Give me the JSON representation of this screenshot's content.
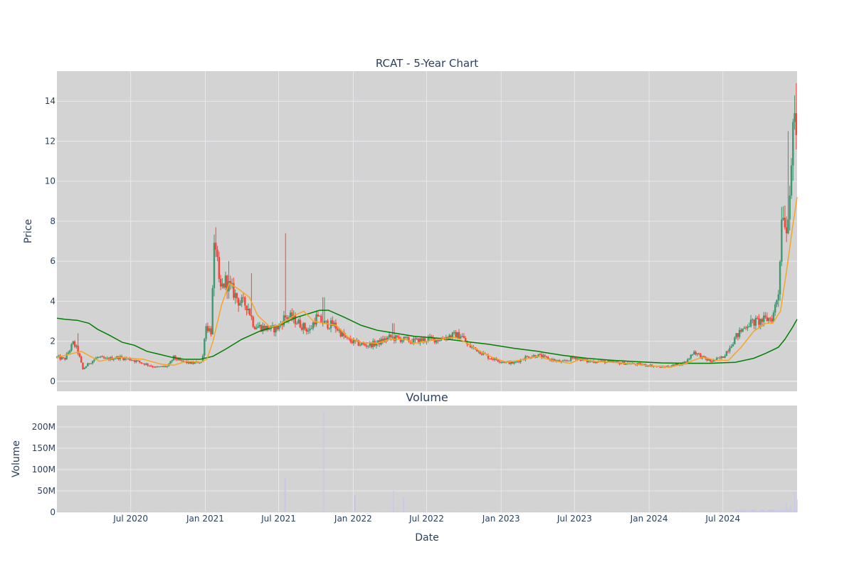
{
  "chart_data": [
    {
      "type": "candlestick",
      "title": "RCAT - 5-Year Chart",
      "ylabel": "Price",
      "xlabel": "",
      "x_range": [
        "2020-01-01",
        "2024-12-31"
      ],
      "ylim": [
        -0.5,
        15.5
      ],
      "y_ticks": [
        0,
        2,
        4,
        6,
        8,
        10,
        12,
        14
      ],
      "grid": true,
      "legend": "none",
      "colors": {
        "plot_bg": "#d3d3d3",
        "grid": "#e8e8ee",
        "up": "#3d9970",
        "down": "#ff4136",
        "ma_short": "#f5a623",
        "ma_long": "#008000",
        "text": "#2a3f5f"
      },
      "price_path": [
        [
          "2020-01-01",
          1.2
        ],
        [
          "2020-01-20",
          1.1
        ],
        [
          "2020-02-10",
          1.9
        ],
        [
          "2020-02-20",
          1.6
        ],
        [
          "2020-03-05",
          0.6
        ],
        [
          "2020-03-20",
          0.9
        ],
        [
          "2020-04-10",
          1.2
        ],
        [
          "2020-05-01",
          1.1
        ],
        [
          "2020-06-01",
          1.2
        ],
        [
          "2020-07-01",
          1.1
        ],
        [
          "2020-08-01",
          0.9
        ],
        [
          "2020-09-01",
          0.7
        ],
        [
          "2020-10-01",
          0.75
        ],
        [
          "2020-10-15",
          1.2
        ],
        [
          "2020-11-01",
          1.0
        ],
        [
          "2020-12-01",
          0.9
        ],
        [
          "2020-12-25",
          1.0
        ],
        [
          "2021-01-01",
          2.8
        ],
        [
          "2021-01-15",
          2.5
        ],
        [
          "2021-01-25",
          7.4
        ],
        [
          "2021-02-05",
          4.5
        ],
        [
          "2021-02-20",
          5.0
        ],
        [
          "2021-03-10",
          4.5
        ],
        [
          "2021-03-25",
          4.0
        ],
        [
          "2021-04-15",
          3.8
        ],
        [
          "2021-05-01",
          2.8
        ],
        [
          "2021-05-20",
          2.7
        ],
        [
          "2021-06-15",
          2.6
        ],
        [
          "2021-07-01",
          2.7
        ],
        [
          "2021-07-15",
          3.2
        ],
        [
          "2021-08-01",
          3.2
        ],
        [
          "2021-08-20",
          2.9
        ],
        [
          "2021-09-15",
          2.5
        ],
        [
          "2021-10-01",
          3.2
        ],
        [
          "2021-10-20",
          2.9
        ],
        [
          "2021-11-15",
          2.8
        ],
        [
          "2021-12-15",
          2.1
        ],
        [
          "2022-01-10",
          1.9
        ],
        [
          "2022-02-01",
          1.8
        ],
        [
          "2022-03-01",
          1.9
        ],
        [
          "2022-04-01",
          2.2
        ],
        [
          "2022-05-01",
          2.1
        ],
        [
          "2022-06-01",
          2.0
        ],
        [
          "2022-07-01",
          2.1
        ],
        [
          "2022-08-01",
          2.1
        ],
        [
          "2022-09-01",
          2.3
        ],
        [
          "2022-09-25",
          2.3
        ],
        [
          "2022-10-10",
          1.8
        ],
        [
          "2022-11-01",
          1.6
        ],
        [
          "2022-12-01",
          1.2
        ],
        [
          "2023-01-01",
          1.0
        ],
        [
          "2023-02-01",
          0.9
        ],
        [
          "2023-03-01",
          1.2
        ],
        [
          "2023-04-01",
          1.3
        ],
        [
          "2023-05-01",
          1.1
        ],
        [
          "2023-06-01",
          0.95
        ],
        [
          "2023-07-01",
          1.2
        ],
        [
          "2023-08-01",
          1.0
        ],
        [
          "2023-09-01",
          1.0
        ],
        [
          "2023-10-01",
          0.95
        ],
        [
          "2023-11-01",
          0.9
        ],
        [
          "2023-12-01",
          0.85
        ],
        [
          "2024-01-01",
          0.8
        ],
        [
          "2024-02-01",
          0.7
        ],
        [
          "2024-03-01",
          0.8
        ],
        [
          "2024-04-01",
          0.95
        ],
        [
          "2024-04-20",
          1.5
        ],
        [
          "2024-05-10",
          1.2
        ],
        [
          "2024-06-01",
          1.0
        ],
        [
          "2024-07-01",
          1.2
        ],
        [
          "2024-08-01",
          2.2
        ],
        [
          "2024-09-01",
          2.9
        ],
        [
          "2024-10-01",
          3.0
        ],
        [
          "2024-11-01",
          3.2
        ],
        [
          "2024-11-15",
          4.5
        ],
        [
          "2024-11-25",
          9.0
        ],
        [
          "2024-12-05",
          7.5
        ],
        [
          "2024-12-15",
          10.5
        ],
        [
          "2024-12-25",
          13.0
        ],
        [
          "2024-12-31",
          12.0
        ]
      ],
      "spikes": [
        [
          "2020-02-22",
          2.4
        ],
        [
          "2021-01-27",
          7.7
        ],
        [
          "2021-03-01",
          6.0
        ],
        [
          "2021-04-25",
          5.4
        ],
        [
          "2021-07-17",
          7.4
        ],
        [
          "2021-10-20",
          4.2
        ],
        [
          "2022-04-10",
          2.9
        ],
        [
          "2024-12-10",
          12.5
        ],
        [
          "2024-12-30",
          14.9
        ]
      ],
      "ma_short": [
        [
          "2020-01-01",
          1.2
        ],
        [
          "2020-03-01",
          1.5
        ],
        [
          "2020-04-15",
          1.0
        ],
        [
          "2020-06-01",
          1.2
        ],
        [
          "2020-08-01",
          1.1
        ],
        [
          "2020-09-15",
          0.85
        ],
        [
          "2020-10-15",
          0.8
        ],
        [
          "2020-11-15",
          1.0
        ],
        [
          "2020-12-20",
          0.95
        ],
        [
          "2021-01-05",
          1.1
        ],
        [
          "2021-01-20",
          2.0
        ],
        [
          "2021-02-10",
          3.8
        ],
        [
          "2021-03-01",
          4.9
        ],
        [
          "2021-03-25",
          4.6
        ],
        [
          "2021-04-20",
          4.2
        ],
        [
          "2021-05-10",
          3.3
        ],
        [
          "2021-06-10",
          2.7
        ],
        [
          "2021-07-01",
          2.8
        ],
        [
          "2021-08-10",
          3.3
        ],
        [
          "2021-09-01",
          3.5
        ],
        [
          "2021-09-25",
          3.0
        ],
        [
          "2021-10-20",
          2.9
        ],
        [
          "2021-11-20",
          2.8
        ],
        [
          "2021-12-20",
          2.2
        ],
        [
          "2022-01-20",
          1.95
        ],
        [
          "2022-03-01",
          1.9
        ],
        [
          "2022-04-01",
          2.1
        ],
        [
          "2022-05-10",
          2.1
        ],
        [
          "2022-06-01",
          1.9
        ],
        [
          "2022-07-01",
          2.0
        ],
        [
          "2022-08-01",
          2.1
        ],
        [
          "2022-09-10",
          2.2
        ],
        [
          "2022-10-10",
          1.9
        ],
        [
          "2022-11-10",
          1.5
        ],
        [
          "2022-12-10",
          1.2
        ],
        [
          "2023-01-15",
          0.95
        ],
        [
          "2023-02-15",
          1.05
        ],
        [
          "2023-04-01",
          1.25
        ],
        [
          "2023-05-15",
          1.0
        ],
        [
          "2023-06-20",
          0.9
        ],
        [
          "2023-07-15",
          1.1
        ],
        [
          "2023-08-15",
          1.0
        ],
        [
          "2023-10-01",
          0.95
        ],
        [
          "2023-12-01",
          0.85
        ],
        [
          "2024-01-15",
          0.75
        ],
        [
          "2024-02-20",
          0.7
        ],
        [
          "2024-04-01",
          0.9
        ],
        [
          "2024-05-10",
          1.2
        ],
        [
          "2024-06-15",
          1.05
        ],
        [
          "2024-07-15",
          1.05
        ],
        [
          "2024-08-15",
          1.7
        ],
        [
          "2024-09-15",
          2.5
        ],
        [
          "2024-10-15",
          2.9
        ],
        [
          "2024-11-01",
          2.9
        ],
        [
          "2024-11-20",
          3.5
        ],
        [
          "2024-12-05",
          5.5
        ],
        [
          "2024-12-20",
          7.7
        ],
        [
          "2024-12-31",
          9.2
        ]
      ],
      "ma_long": [
        [
          "2020-01-01",
          3.15
        ],
        [
          "2020-01-20",
          3.1
        ],
        [
          "2020-02-20",
          3.05
        ],
        [
          "2020-03-20",
          2.9
        ],
        [
          "2020-04-10",
          2.6
        ],
        [
          "2020-05-10",
          2.3
        ],
        [
          "2020-06-10",
          1.95
        ],
        [
          "2020-07-10",
          1.8
        ],
        [
          "2020-08-10",
          1.5
        ],
        [
          "2020-09-10",
          1.35
        ],
        [
          "2020-10-10",
          1.2
        ],
        [
          "2020-11-10",
          1.1
        ],
        [
          "2020-12-20",
          1.1
        ],
        [
          "2021-01-20",
          1.25
        ],
        [
          "2021-02-20",
          1.6
        ],
        [
          "2021-04-01",
          2.1
        ],
        [
          "2021-05-15",
          2.5
        ],
        [
          "2021-07-01",
          2.8
        ],
        [
          "2021-08-15",
          3.2
        ],
        [
          "2021-10-10",
          3.55
        ],
        [
          "2021-11-01",
          3.55
        ],
        [
          "2021-12-10",
          3.2
        ],
        [
          "2022-01-20",
          2.8
        ],
        [
          "2022-03-01",
          2.55
        ],
        [
          "2022-04-15",
          2.4
        ],
        [
          "2022-06-01",
          2.25
        ],
        [
          "2022-08-01",
          2.15
        ],
        [
          "2022-10-01",
          2.0
        ],
        [
          "2022-12-01",
          1.85
        ],
        [
          "2023-02-01",
          1.65
        ],
        [
          "2023-04-01",
          1.5
        ],
        [
          "2023-06-01",
          1.3
        ],
        [
          "2023-08-01",
          1.15
        ],
        [
          "2023-10-01",
          1.05
        ],
        [
          "2023-12-01",
          0.98
        ],
        [
          "2024-02-01",
          0.92
        ],
        [
          "2024-04-01",
          0.9
        ],
        [
          "2024-06-01",
          0.9
        ],
        [
          "2024-08-01",
          0.95
        ],
        [
          "2024-09-15",
          1.15
        ],
        [
          "2024-10-15",
          1.4
        ],
        [
          "2024-11-15",
          1.7
        ],
        [
          "2024-12-01",
          2.1
        ],
        [
          "2024-12-20",
          2.7
        ],
        [
          "2024-12-31",
          3.1
        ]
      ]
    },
    {
      "type": "bar",
      "title": "Volume",
      "xlabel": "Date",
      "ylabel": "Volume",
      "x_range": [
        "2020-01-01",
        "2024-12-31"
      ],
      "ylim": [
        0,
        250000000
      ],
      "y_ticks": [
        0,
        50000000,
        100000000,
        150000000,
        200000000
      ],
      "y_tick_labels": [
        "0",
        "50M",
        "100M",
        "150M",
        "200M"
      ],
      "x_ticks": [
        "2020-07-01",
        "2021-01-01",
        "2021-07-01",
        "2022-01-01",
        "2022-07-01",
        "2023-01-01",
        "2023-07-01",
        "2024-01-01",
        "2024-07-01"
      ],
      "x_tick_labels": [
        "Jul 2020",
        "Jan 2021",
        "Jul 2021",
        "Jan 2022",
        "Jul 2022",
        "Jan 2023",
        "Jul 2023",
        "Jan 2024",
        "Jul 2024"
      ],
      "bar_color": "#c8c8e8",
      "volume_peaks": [
        [
          "2021-07-17",
          80000000
        ],
        [
          "2021-10-20",
          235000000
        ],
        [
          "2022-01-05",
          40000000
        ],
        [
          "2022-04-10",
          50000000
        ],
        [
          "2022-05-05",
          35000000
        ],
        [
          "2024-12-05",
          25000000
        ],
        [
          "2024-12-15",
          18000000
        ],
        [
          "2024-12-25",
          48000000
        ],
        [
          "2024-12-31",
          30000000
        ]
      ]
    }
  ]
}
